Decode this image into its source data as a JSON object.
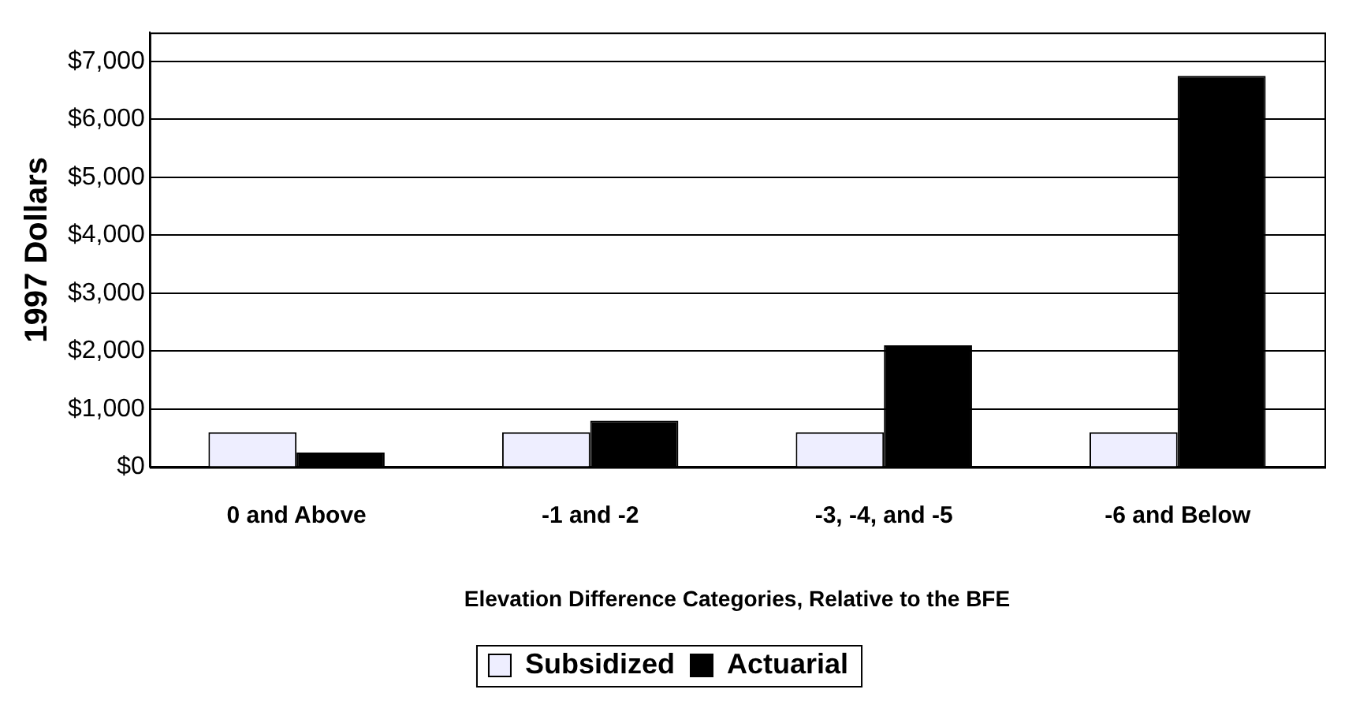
{
  "chart_data": {
    "type": "bar",
    "xlabel": "Elevation Difference Categories, Relative to the BFE",
    "ylabel": "1997 Dollars",
    "categories": [
      "0 and Above",
      "-1 and -2",
      "-3, -4, and -5",
      "-6 and Below"
    ],
    "series": [
      {
        "name": "Subsidized",
        "color": "#eeeeff",
        "values": [
          600,
          600,
          600,
          600
        ]
      },
      {
        "name": "Actuarial",
        "color": "#000000",
        "values": [
          250,
          800,
          2100,
          6750
        ]
      }
    ],
    "ylim": [
      0,
      7500
    ],
    "yticks": [
      {
        "value": 0,
        "label": "$0"
      },
      {
        "value": 1000,
        "label": "$1,000"
      },
      {
        "value": 2000,
        "label": "$2,000"
      },
      {
        "value": 3000,
        "label": "$3,000"
      },
      {
        "value": 4000,
        "label": "$4,000"
      },
      {
        "value": 5000,
        "label": "$5,000"
      },
      {
        "value": 6000,
        "label": "$6,000"
      },
      {
        "value": 7000,
        "label": "$7,000"
      }
    ],
    "grid": "y",
    "legend": "bottom"
  }
}
